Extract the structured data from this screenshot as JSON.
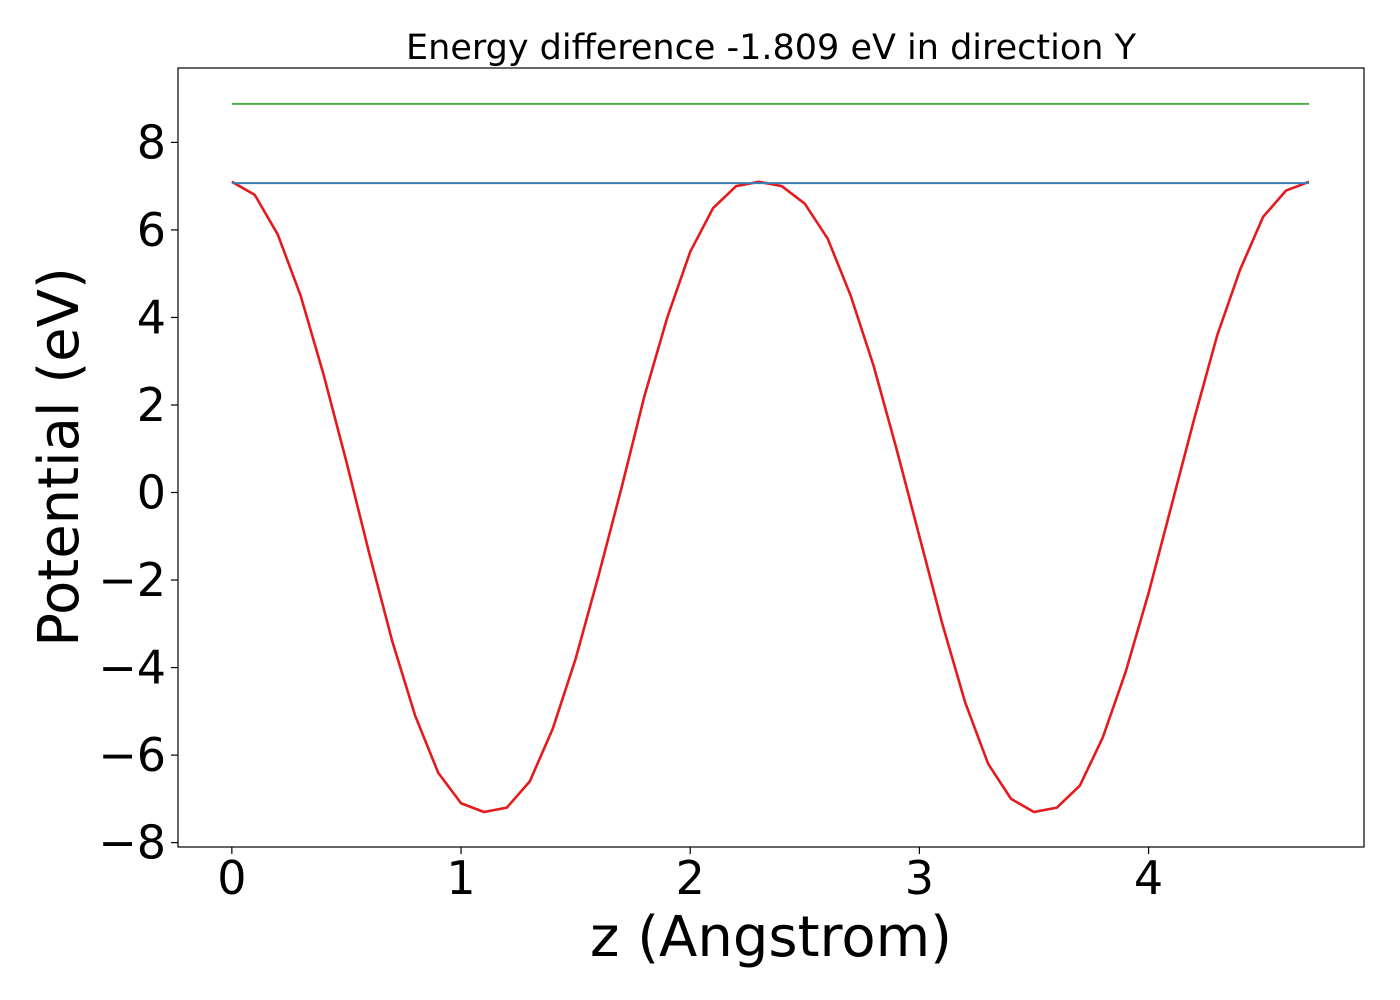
{
  "chart_data": {
    "type": "line",
    "title": "Energy difference -1.809 eV in direction Y",
    "xlabel": "z (Angstrom)",
    "ylabel": "Potential (eV)",
    "xlim": [
      -0.235,
      4.94
    ],
    "ylim": [
      -8.1,
      9.7
    ],
    "xticks": [
      0,
      1,
      2,
      3,
      4
    ],
    "yticks": [
      -8,
      -6,
      -4,
      -2,
      0,
      2,
      4,
      6,
      8
    ],
    "xtick_labels": [
      "0",
      "1",
      "2",
      "3",
      "4"
    ],
    "ytick_labels": [
      "−8",
      "−6",
      "−4",
      "−2",
      "0",
      "2",
      "4",
      "6",
      "8"
    ],
    "grid": false,
    "series": [
      {
        "kind": "curve",
        "color": "#e41a1c",
        "x": [
          0,
          0.1,
          0.2,
          0.3,
          0.4,
          0.5,
          0.6,
          0.7,
          0.8,
          0.9,
          1.0,
          1.1,
          1.2,
          1.3,
          1.4,
          1.5,
          1.6,
          1.7,
          1.8,
          1.9,
          2.0,
          2.1,
          2.2,
          2.3,
          2.4,
          2.5,
          2.6,
          2.7,
          2.8,
          2.9,
          3.0,
          3.1,
          3.2,
          3.3,
          3.4,
          3.5,
          3.6,
          3.7,
          3.8,
          3.9,
          4.0,
          4.1,
          4.2,
          4.3,
          4.4,
          4.5,
          4.6,
          4.7
        ],
        "y": [
          7.1,
          6.8,
          5.9,
          4.5,
          2.7,
          0.7,
          -1.4,
          -3.4,
          -5.1,
          -6.4,
          -7.1,
          -7.3,
          -7.2,
          -6.6,
          -5.4,
          -3.8,
          -1.9,
          0.1,
          2.2,
          4.0,
          5.5,
          6.5,
          7.0,
          7.1,
          7.0,
          6.6,
          5.8,
          4.5,
          2.9,
          1.0,
          -1.0,
          -3.0,
          -4.8,
          -6.2,
          -7.0,
          -7.3,
          -7.2,
          -6.7,
          -5.6,
          -4.1,
          -2.3,
          -0.3,
          1.7,
          3.6,
          5.1,
          6.3,
          6.9,
          7.1
        ]
      },
      {
        "kind": "hline",
        "color": "#377eb8",
        "y": 7.07,
        "xrange": [
          0,
          4.7
        ]
      },
      {
        "kind": "hline",
        "color": "#4daf4a",
        "y": 8.88,
        "xrange": [
          0,
          4.7
        ]
      }
    ]
  }
}
